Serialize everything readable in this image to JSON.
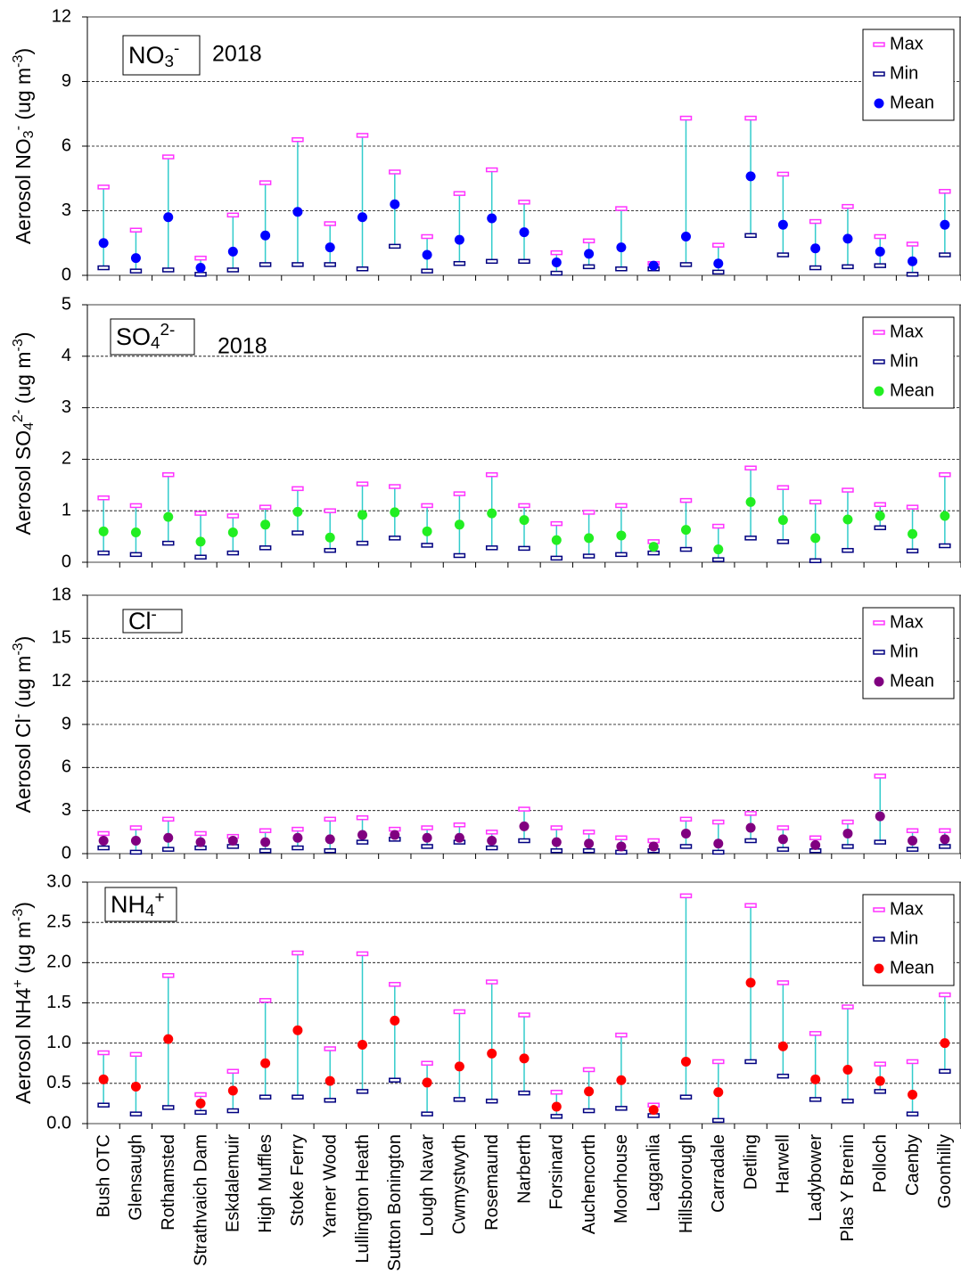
{
  "chart_data": [
    {
      "type": "range",
      "label": [
        {
          "text": "NO"
        },
        {
          "text": "3",
          "shift": "sub"
        },
        {
          "text": "-",
          "shift": "sup"
        }
      ],
      "year": "2018",
      "ylabel": [
        {
          "text": "Aerosol NO"
        },
        {
          "text": "3",
          "shift": "sub"
        },
        {
          "text": "-",
          "shift": "sup"
        },
        {
          "text": " (ug m"
        },
        {
          "text": "-3",
          "shift": "sup"
        },
        {
          "text": ")"
        }
      ],
      "ylim": [
        0,
        12
      ],
      "yticks": [
        0,
        3,
        6,
        9,
        12
      ],
      "grid": true,
      "whisker_color": "#33cccc",
      "series": [
        {
          "name": "Max",
          "color": "#ff33ff",
          "values": [
            4.1,
            2.1,
            5.5,
            0.8,
            2.8,
            4.3,
            6.3,
            2.4,
            6.5,
            4.8,
            1.8,
            3.8,
            4.9,
            3.4,
            1.05,
            1.6,
            3.1,
            0.55,
            7.3,
            1.4,
            7.3,
            4.7,
            2.5,
            3.2,
            1.8,
            1.45,
            3.9
          ]
        },
        {
          "name": "Min",
          "color": "#000080",
          "values": [
            0.35,
            0.2,
            0.25,
            0.05,
            0.25,
            0.5,
            0.5,
            0.5,
            0.3,
            1.35,
            0.2,
            0.55,
            0.65,
            0.65,
            0.1,
            0.4,
            0.3,
            0.3,
            0.5,
            0.15,
            1.85,
            0.95,
            0.35,
            0.4,
            0.45,
            0.05,
            0.95
          ]
        },
        {
          "name": "Mean",
          "color": "#0000ff",
          "values": [
            1.5,
            0.8,
            2.7,
            0.35,
            1.1,
            1.85,
            2.95,
            1.3,
            2.7,
            3.3,
            0.95,
            1.65,
            2.65,
            2.0,
            0.6,
            1.0,
            1.3,
            0.45,
            1.8,
            0.55,
            4.6,
            2.35,
            1.25,
            1.7,
            1.1,
            0.65,
            2.35
          ]
        }
      ]
    },
    {
      "type": "range",
      "label": [
        {
          "text": "SO"
        },
        {
          "text": "4",
          "shift": "sub"
        },
        {
          "text": "2-",
          "shift": "sup"
        }
      ],
      "year": "2018",
      "ylabel": [
        {
          "text": "Aerosol SO"
        },
        {
          "text": "4",
          "shift": "sub"
        },
        {
          "text": "2-",
          "shift": "sup"
        },
        {
          "text": " (ug m"
        },
        {
          "text": "-3",
          "shift": "sup"
        },
        {
          "text": ")"
        }
      ],
      "ylim": [
        0,
        5
      ],
      "yticks": [
        0,
        1,
        2,
        3,
        4,
        5
      ],
      "grid": true,
      "whisker_color": "#33cccc",
      "series": [
        {
          "name": "Max",
          "color": "#ff33ff",
          "values": [
            1.25,
            1.1,
            1.7,
            0.95,
            0.9,
            1.07,
            1.43,
            1.0,
            1.52,
            1.47,
            1.1,
            1.33,
            1.7,
            1.1,
            0.75,
            0.97,
            1.1,
            0.4,
            1.2,
            0.7,
            1.83,
            1.45,
            1.17,
            1.4,
            1.12,
            1.07,
            1.7
          ]
        },
        {
          "name": "Min",
          "color": "#000080",
          "values": [
            0.18,
            0.15,
            0.37,
            0.1,
            0.18,
            0.28,
            0.57,
            0.23,
            0.37,
            0.47,
            0.33,
            0.13,
            0.28,
            0.27,
            0.08,
            0.12,
            0.15,
            0.18,
            0.25,
            0.05,
            0.47,
            0.4,
            0.03,
            0.23,
            0.67,
            0.22,
            0.32
          ]
        },
        {
          "name": "Mean",
          "color": "#22ee22",
          "values": [
            0.6,
            0.58,
            0.88,
            0.4,
            0.58,
            0.73,
            0.98,
            0.48,
            0.92,
            0.97,
            0.6,
            0.73,
            0.95,
            0.82,
            0.43,
            0.47,
            0.52,
            0.3,
            0.63,
            0.25,
            1.17,
            0.82,
            0.47,
            0.83,
            0.9,
            0.55,
            0.9
          ]
        }
      ]
    },
    {
      "type": "range",
      "label": [
        {
          "text": "Cl"
        },
        {
          "text": "-",
          "shift": "sup"
        }
      ],
      "ylabel": [
        {
          "text": "Aerosol Cl"
        },
        {
          "text": "-",
          "shift": "sup"
        },
        {
          "text": " (ug m"
        },
        {
          "text": "-3",
          "shift": "sup"
        },
        {
          "text": ")"
        }
      ],
      "ylim": [
        0,
        18
      ],
      "yticks": [
        0,
        3,
        6,
        9,
        12,
        15,
        18
      ],
      "grid": true,
      "whisker_color": "#33cccc",
      "series": [
        {
          "name": "Max",
          "color": "#ff33ff",
          "values": [
            1.4,
            1.8,
            2.4,
            1.4,
            1.2,
            1.6,
            1.7,
            2.4,
            2.5,
            1.7,
            1.8,
            2.0,
            1.5,
            3.1,
            1.8,
            1.5,
            1.1,
            0.9,
            2.4,
            2.2,
            2.8,
            1.8,
            1.1,
            2.2,
            5.4,
            1.6,
            1.6
          ]
        },
        {
          "name": "Min",
          "color": "#000080",
          "values": [
            0.4,
            0.1,
            0.3,
            0.4,
            0.5,
            0.2,
            0.4,
            0.2,
            0.8,
            1.0,
            0.5,
            0.8,
            0.4,
            0.9,
            0.2,
            0.2,
            0.1,
            0.2,
            0.5,
            0.1,
            0.9,
            0.3,
            0.2,
            0.5,
            0.8,
            0.3,
            0.5
          ]
        },
        {
          "name": "Mean",
          "color": "#800080",
          "values": [
            0.9,
            0.9,
            1.1,
            0.8,
            0.9,
            0.8,
            1.1,
            1.0,
            1.3,
            1.3,
            1.1,
            1.1,
            0.9,
            1.9,
            0.8,
            0.7,
            0.5,
            0.5,
            1.4,
            0.7,
            1.8,
            1.0,
            0.6,
            1.4,
            2.6,
            0.9,
            1.0
          ]
        }
      ]
    },
    {
      "type": "range",
      "label": [
        {
          "text": "NH"
        },
        {
          "text": "4",
          "shift": "sub"
        },
        {
          "text": "+",
          "shift": "sup"
        }
      ],
      "ylabel": [
        {
          "text": "Aerosol NH4"
        },
        {
          "text": "+",
          "shift": "sup"
        },
        {
          "text": " (ug m"
        },
        {
          "text": "-3",
          "shift": "sup"
        },
        {
          "text": ")"
        }
      ],
      "ylim": [
        0,
        3
      ],
      "yticks": [
        {
          "value": 0,
          "label": "0.0"
        },
        0.5,
        {
          "value": 1,
          "label": "1.0"
        },
        1.5,
        {
          "value": 2,
          "label": "2.0"
        },
        2.5,
        {
          "value": 3,
          "label": "3.0"
        }
      ],
      "grid": true,
      "whisker_color": "#33cccc",
      "categories": [
        "Bush OTC",
        "Glensaugh",
        "Rothamsted",
        "Strathvaich Dam",
        "Eskdalemuir",
        "High Muffles",
        "Stoke Ferry",
        "Yarner Wood",
        "Lullington Heath",
        "Sutton Bonington",
        "Lough Navar",
        "Cwmystwyth",
        "Rosemaund",
        "Narberth",
        "Forsinard",
        "Auchencorth",
        "Moorhouse",
        "Lagganlia",
        "Hillsborough",
        "Carradale",
        "Detling",
        "Harwell",
        "Ladybower",
        "Plas Y Brenin",
        "Polloch",
        "Caenby",
        "Goonhilly"
      ],
      "series": [
        {
          "name": "Max",
          "color": "#ff33ff",
          "values": [
            0.88,
            0.86,
            1.84,
            0.36,
            0.65,
            1.53,
            2.12,
            0.93,
            2.11,
            1.73,
            0.75,
            1.39,
            1.76,
            1.35,
            0.39,
            0.67,
            1.1,
            0.23,
            2.83,
            0.77,
            2.71,
            1.75,
            1.12,
            1.45,
            0.74,
            0.77,
            1.6
          ]
        },
        {
          "name": "Min",
          "color": "#000080",
          "values": [
            0.23,
            0.12,
            0.2,
            0.14,
            0.16,
            0.33,
            0.33,
            0.29,
            0.4,
            0.54,
            0.12,
            0.3,
            0.28,
            0.38,
            0.09,
            0.16,
            0.19,
            0.1,
            0.33,
            0.04,
            0.77,
            0.59,
            0.3,
            0.28,
            0.4,
            0.12,
            0.65
          ]
        },
        {
          "name": "Mean",
          "color": "#ff0000",
          "values": [
            0.55,
            0.46,
            1.05,
            0.25,
            0.41,
            0.75,
            1.16,
            0.53,
            0.98,
            1.28,
            0.51,
            0.71,
            0.87,
            0.81,
            0.21,
            0.4,
            0.54,
            0.17,
            0.77,
            0.39,
            1.75,
            0.96,
            0.55,
            0.67,
            0.53,
            0.36,
            1.0
          ]
        }
      ]
    }
  ]
}
